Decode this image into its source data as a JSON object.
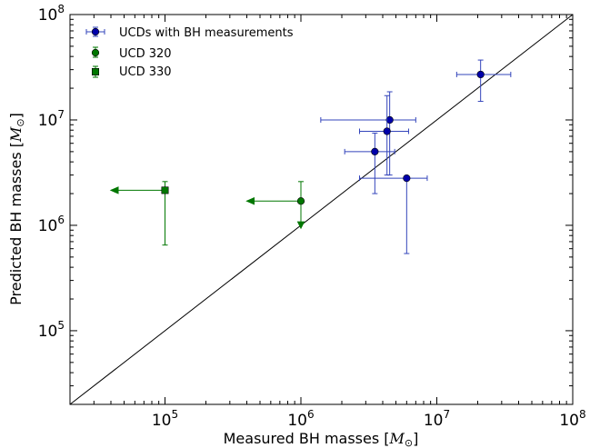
{
  "chart_data": {
    "type": "scatter",
    "xlabel": "Measured BH masses",
    "ylabel": "Predicted BH masses",
    "unit_symbol": "M",
    "unit_subscript": "⊙",
    "xscale": "log",
    "yscale": "log",
    "xlim": [
      20000,
      100000000
    ],
    "ylim": [
      20000,
      100000000
    ],
    "grid": false,
    "legend_position": "top-left",
    "x_ticks": [
      {
        "value": 100000,
        "base": "10",
        "exp": "5"
      },
      {
        "value": 1000000,
        "base": "10",
        "exp": "6"
      },
      {
        "value": 10000000,
        "base": "10",
        "exp": "7"
      },
      {
        "value": 100000000,
        "base": "10",
        "exp": "8"
      }
    ],
    "y_ticks": [
      {
        "value": 100000,
        "base": "10",
        "exp": "5"
      },
      {
        "value": 1000000,
        "base": "10",
        "exp": "6"
      },
      {
        "value": 10000000,
        "base": "10",
        "exp": "7"
      },
      {
        "value": 100000000,
        "base": "10",
        "exp": "8"
      }
    ],
    "reference_line": {
      "type": "one-to-one",
      "color": "#000000"
    },
    "series": [
      {
        "name": "UCDs with BH measurements",
        "marker": "circle",
        "color": "#0000aa",
        "error_color": "#3344bb",
        "points": [
          {
            "x": 21000000,
            "y": 27000000,
            "xerr": [
              14000000,
              35000000
            ],
            "yerr": [
              15000000,
              37000000
            ]
          },
          {
            "x": 4500000,
            "y": 10000000,
            "xerr": [
              1400000,
              7000000
            ],
            "yerr": [
              3000000,
              18500000
            ]
          },
          {
            "x": 4300000,
            "y": 7800000,
            "xerr": [
              2700000,
              6200000
            ],
            "yerr": [
              3000000,
              17000000
            ]
          },
          {
            "x": 3500000,
            "y": 5000000,
            "xerr": [
              2100000,
              4900000
            ],
            "yerr": [
              2000000,
              7500000
            ]
          },
          {
            "x": 6000000,
            "y": 2800000,
            "xerr": [
              2700000,
              8500000
            ],
            "yerr": [
              540000,
              2900000
            ]
          }
        ]
      },
      {
        "name": "UCD 320",
        "marker": "circle",
        "color": "#007700",
        "error_color": "#007700",
        "points": [
          {
            "x": 1000000,
            "y": 1700000,
            "x_upper_limit_to": 400000,
            "yerr": [
              940000,
              2600000
            ],
            "y_arrow_down": true
          }
        ]
      },
      {
        "name": "UCD 330",
        "marker": "square",
        "color": "#007700",
        "error_color": "#007700",
        "points": [
          {
            "x": 100000,
            "y": 2150000,
            "x_upper_limit_to": 40000,
            "yerr": [
              650000,
              2600000
            ]
          }
        ]
      }
    ]
  }
}
